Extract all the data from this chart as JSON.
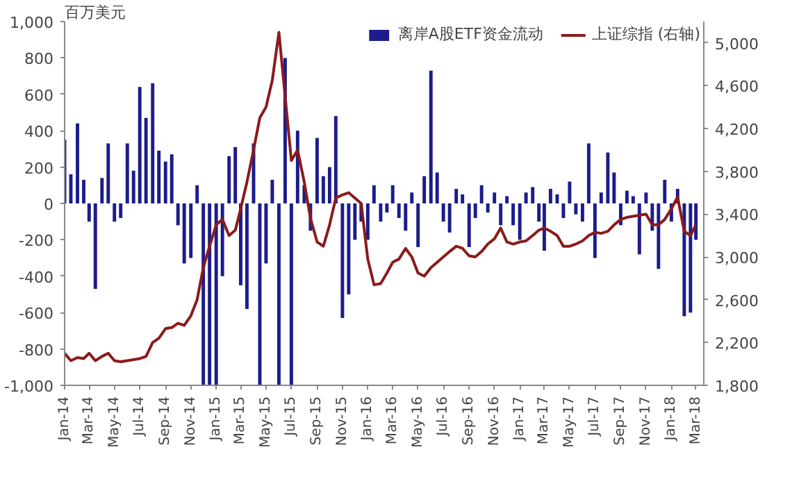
{
  "chart_data": {
    "type": "bar",
    "ylabel": "百万美元",
    "legend": "top",
    "grid": false,
    "x": [
      "2014-01-01",
      "2014-01-16",
      "2014-02-01",
      "2014-02-16",
      "2014-03-01",
      "2014-03-16",
      "2014-04-01",
      "2014-04-16",
      "2014-05-01",
      "2014-05-16",
      "2014-06-01",
      "2014-06-16",
      "2014-07-01",
      "2014-07-16",
      "2014-08-01",
      "2014-08-16",
      "2014-09-01",
      "2014-09-16",
      "2014-10-01",
      "2014-10-16",
      "2014-11-01",
      "2014-11-16",
      "2014-12-01",
      "2014-12-16",
      "2015-01-01",
      "2015-01-16",
      "2015-02-01",
      "2015-02-16",
      "2015-03-01",
      "2015-03-16",
      "2015-04-01",
      "2015-04-16",
      "2015-05-01",
      "2015-05-16",
      "2015-06-01",
      "2015-06-16",
      "2015-07-01",
      "2015-07-16",
      "2015-08-01",
      "2015-08-16",
      "2015-09-01",
      "2015-09-16",
      "2015-10-01",
      "2015-10-16",
      "2015-11-01",
      "2015-11-16",
      "2015-12-01",
      "2015-12-16",
      "2016-01-01",
      "2016-01-16",
      "2016-02-01",
      "2016-02-16",
      "2016-03-01",
      "2016-03-16",
      "2016-04-01",
      "2016-04-16",
      "2016-05-01",
      "2016-05-16",
      "2016-06-01",
      "2016-06-16",
      "2016-07-01",
      "2016-07-16",
      "2016-08-01",
      "2016-08-16",
      "2016-09-01",
      "2016-09-16",
      "2016-10-01",
      "2016-10-16",
      "2016-11-01",
      "2016-11-16",
      "2016-12-01",
      "2016-12-16",
      "2017-01-01",
      "2017-01-16",
      "2017-02-01",
      "2017-02-16",
      "2017-03-01",
      "2017-03-16",
      "2017-04-01",
      "2017-04-16",
      "2017-05-01",
      "2017-05-16",
      "2017-06-01",
      "2017-06-16",
      "2017-07-01",
      "2017-07-16",
      "2017-08-01",
      "2017-08-16",
      "2017-09-01",
      "2017-09-16",
      "2017-10-01",
      "2017-10-16",
      "2017-11-01",
      "2017-11-16",
      "2017-12-01",
      "2017-12-16",
      "2018-01-01",
      "2018-01-16",
      "2018-02-01",
      "2018-02-16",
      "2018-03-01"
    ],
    "series": [
      {
        "name": "离岸A股ETF资金流动",
        "color": "#1c1c8c",
        "values": [
          350,
          160,
          440,
          130,
          -100,
          -470,
          140,
          330,
          -100,
          -80,
          330,
          180,
          640,
          470,
          660,
          290,
          230,
          270,
          -120,
          -330,
          -300,
          100,
          -1000,
          -1000,
          -1000,
          -400,
          260,
          310,
          -450,
          -580,
          330,
          -1000,
          -330,
          130,
          -1000,
          800,
          -1000,
          400,
          100,
          -150,
          360,
          150,
          200,
          480,
          -630,
          -500,
          -200,
          -100,
          -200,
          100,
          -100,
          -50,
          100,
          -80,
          -150,
          60,
          -240,
          150,
          730,
          170,
          -100,
          -160,
          80,
          50,
          -240,
          -80,
          100,
          -50,
          60,
          -120,
          40,
          -120,
          -200,
          60,
          90,
          -100,
          -260,
          80,
          50,
          -80,
          120,
          -60,
          -100,
          330,
          -300,
          60,
          280,
          170,
          -120,
          70,
          40,
          -280,
          60,
          -150,
          -360,
          130,
          -100,
          80,
          -620,
          -600,
          -200
        ]
      },
      {
        "name": "上证综指 (右轴)",
        "type": "line",
        "axis": "y2",
        "color": "#8b1a1a",
        "values": [
          2100,
          2030,
          2060,
          2050,
          2100,
          2030,
          2070,
          2100,
          2030,
          2020,
          2030,
          2040,
          2050,
          2070,
          2200,
          2240,
          2330,
          2340,
          2380,
          2360,
          2450,
          2600,
          2900,
          3100,
          3300,
          3350,
          3200,
          3250,
          3450,
          3700,
          4000,
          4300,
          4400,
          4650,
          5100,
          4500,
          3900,
          4000,
          3700,
          3360,
          3140,
          3100,
          3300,
          3550,
          3580,
          3600,
          3550,
          3500,
          2980,
          2740,
          2750,
          2850,
          2950,
          2980,
          3080,
          3000,
          2850,
          2820,
          2900,
          2950,
          3000,
          3050,
          3100,
          3080,
          3010,
          3000,
          3050,
          3120,
          3170,
          3270,
          3140,
          3120,
          3140,
          3150,
          3200,
          3250,
          3270,
          3240,
          3200,
          3100,
          3100,
          3120,
          3150,
          3200,
          3230,
          3220,
          3240,
          3300,
          3350,
          3370,
          3380,
          3390,
          3400,
          3300,
          3300,
          3350,
          3450,
          3560,
          3240,
          3200,
          3300
        ]
      }
    ],
    "xlim": [
      "2014-01-01",
      "2018-03-20"
    ],
    "xticks": [
      {
        "value": "2014-01-01",
        "label": "Jan-14"
      },
      {
        "value": "2014-03-01",
        "label": "Mar-14"
      },
      {
        "value": "2014-05-01",
        "label": "May-14"
      },
      {
        "value": "2014-07-01",
        "label": "Jul-14"
      },
      {
        "value": "2014-09-01",
        "label": "Sep-14"
      },
      {
        "value": "2014-11-01",
        "label": "Nov-14"
      },
      {
        "value": "2015-01-01",
        "label": "Jan-15"
      },
      {
        "value": "2015-03-01",
        "label": "Mar-15"
      },
      {
        "value": "2015-05-01",
        "label": "May-15"
      },
      {
        "value": "2015-07-01",
        "label": "Jul-15"
      },
      {
        "value": "2015-09-01",
        "label": "Sep-15"
      },
      {
        "value": "2015-11-01",
        "label": "Nov-15"
      },
      {
        "value": "2016-01-01",
        "label": "Jan-16"
      },
      {
        "value": "2016-03-01",
        "label": "Mar-16"
      },
      {
        "value": "2016-05-01",
        "label": "May-16"
      },
      {
        "value": "2016-07-01",
        "label": "Jul-16"
      },
      {
        "value": "2016-09-01",
        "label": "Sep-16"
      },
      {
        "value": "2016-11-01",
        "label": "Nov-16"
      },
      {
        "value": "2017-01-01",
        "label": "Jan-17"
      },
      {
        "value": "2017-03-01",
        "label": "Mar-17"
      },
      {
        "value": "2017-05-01",
        "label": "May-17"
      },
      {
        "value": "2017-07-01",
        "label": "Jul-17"
      },
      {
        "value": "2017-09-01",
        "label": "Sep-17"
      },
      {
        "value": "2017-11-01",
        "label": "Nov-17"
      },
      {
        "value": "2018-01-01",
        "label": "Jan-18"
      },
      {
        "value": "2018-03-01",
        "label": "Mar-18"
      }
    ],
    "ylim": [
      -1000,
      1000
    ],
    "yticks": [
      {
        "value": -1000,
        "label": "-1,000"
      },
      -800,
      -600,
      -400,
      -200,
      0,
      200,
      400,
      600,
      800,
      {
        "value": 1000,
        "label": "1,000"
      }
    ],
    "y2lim": [
      1800,
      5200
    ],
    "y2ticks": [
      {
        "value": 1800,
        "label": "1,800"
      },
      {
        "value": 2200,
        "label": "2,200"
      },
      {
        "value": 2600,
        "label": "2,600"
      },
      {
        "value": 3000,
        "label": "3,000"
      },
      {
        "value": 3400,
        "label": "3,400"
      },
      {
        "value": 3800,
        "label": "3,800"
      },
      {
        "value": 4200,
        "label": "4,200"
      },
      {
        "value": 4600,
        "label": "4,600"
      },
      {
        "value": 5000,
        "label": "5,000"
      }
    ]
  }
}
